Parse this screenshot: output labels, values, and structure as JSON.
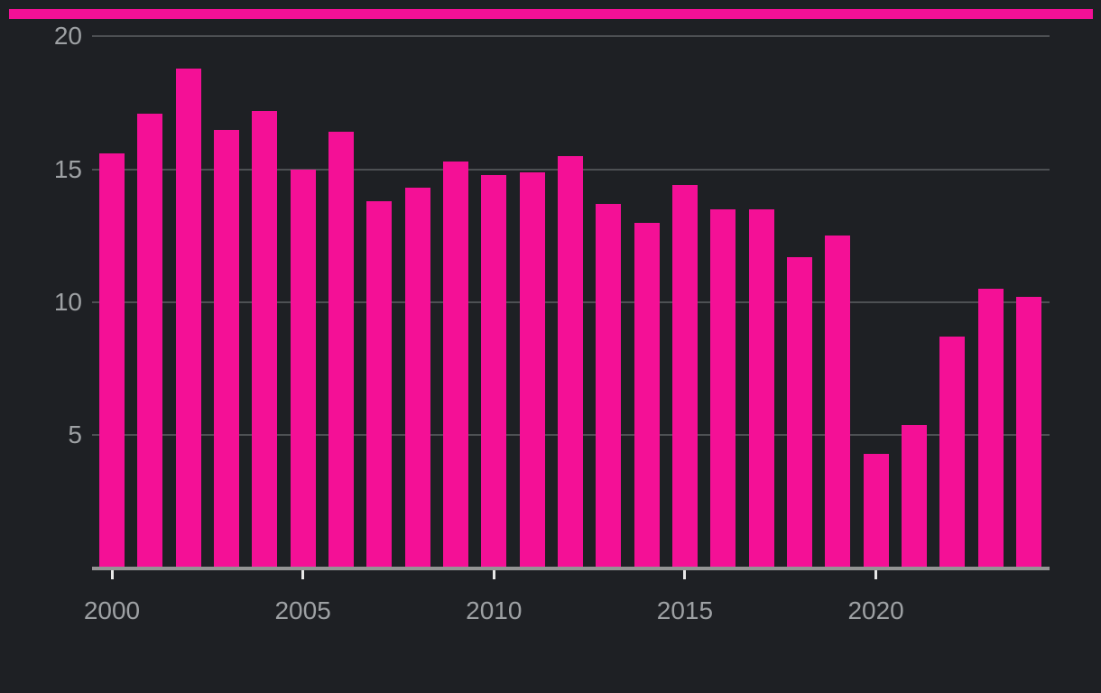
{
  "top_strip": {
    "color": "#f41096"
  },
  "chart_data": {
    "type": "bar",
    "categories": [
      2000,
      2001,
      2002,
      2003,
      2004,
      2005,
      2006,
      2007,
      2008,
      2009,
      2010,
      2011,
      2012,
      2013,
      2014,
      2015,
      2016,
      2017,
      2018,
      2019,
      2020,
      2021,
      2022,
      2023,
      2024
    ],
    "values": [
      15.6,
      17.1,
      18.8,
      16.5,
      17.2,
      15.0,
      16.4,
      13.8,
      14.3,
      15.3,
      14.8,
      14.9,
      15.5,
      13.7,
      13.0,
      14.4,
      13.5,
      13.5,
      11.7,
      12.5,
      4.3,
      5.4,
      8.7,
      10.5,
      10.2
    ],
    "x_tick_years": [
      2000,
      2005,
      2010,
      2015,
      2020
    ],
    "y_ticks": [
      5,
      10,
      15,
      20
    ],
    "ylim": [
      0,
      20
    ],
    "grid": true,
    "legend": "none",
    "bar_color": "#f41096",
    "background_color": "#1e2024",
    "gridline_color": "#4d5053",
    "axis_line_color": "#949494",
    "tick_mark_color": "#e8e8e8",
    "axis_label_color": "#9ea1a4"
  }
}
